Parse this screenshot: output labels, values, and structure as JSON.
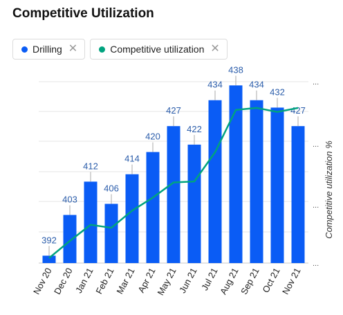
{
  "title": "Competitive Utilization",
  "legend": [
    {
      "label": "Drilling",
      "color": "#0a5cf5",
      "close_icon": "close-icon"
    },
    {
      "label": "Competitive utilization",
      "color": "#00a37f",
      "close_icon": "close-icon"
    }
  ],
  "right_axis": {
    "label": "Competitive utilization %",
    "tick_glyph": "..."
  },
  "chart_data": {
    "type": "bar",
    "categories": [
      "Nov 20",
      "Dec 20",
      "Jan 21",
      "Feb 21",
      "Mar 21",
      "Apr 21",
      "May 21",
      "Jun 21",
      "Jul 21",
      "Aug 21",
      "Sep 21",
      "Oct 21",
      "Nov 21"
    ],
    "series": [
      {
        "name": "Drilling",
        "type": "bar",
        "color": "#0a5cf5",
        "values": [
          392,
          403,
          412,
          406,
          414,
          420,
          427,
          422,
          434,
          438,
          434,
          432,
          427
        ]
      },
      {
        "name": "Competitive utilization",
        "type": "line",
        "color": "#00a37f",
        "values": [
          5,
          22,
          38,
          35,
          52,
          65,
          80,
          81,
          110,
          152,
          154,
          150,
          154
        ]
      }
    ],
    "ylim": [
      390,
      439
    ],
    "y2lim": [
      0,
      180
    ],
    "grid": true,
    "legend_position": "top-left"
  }
}
